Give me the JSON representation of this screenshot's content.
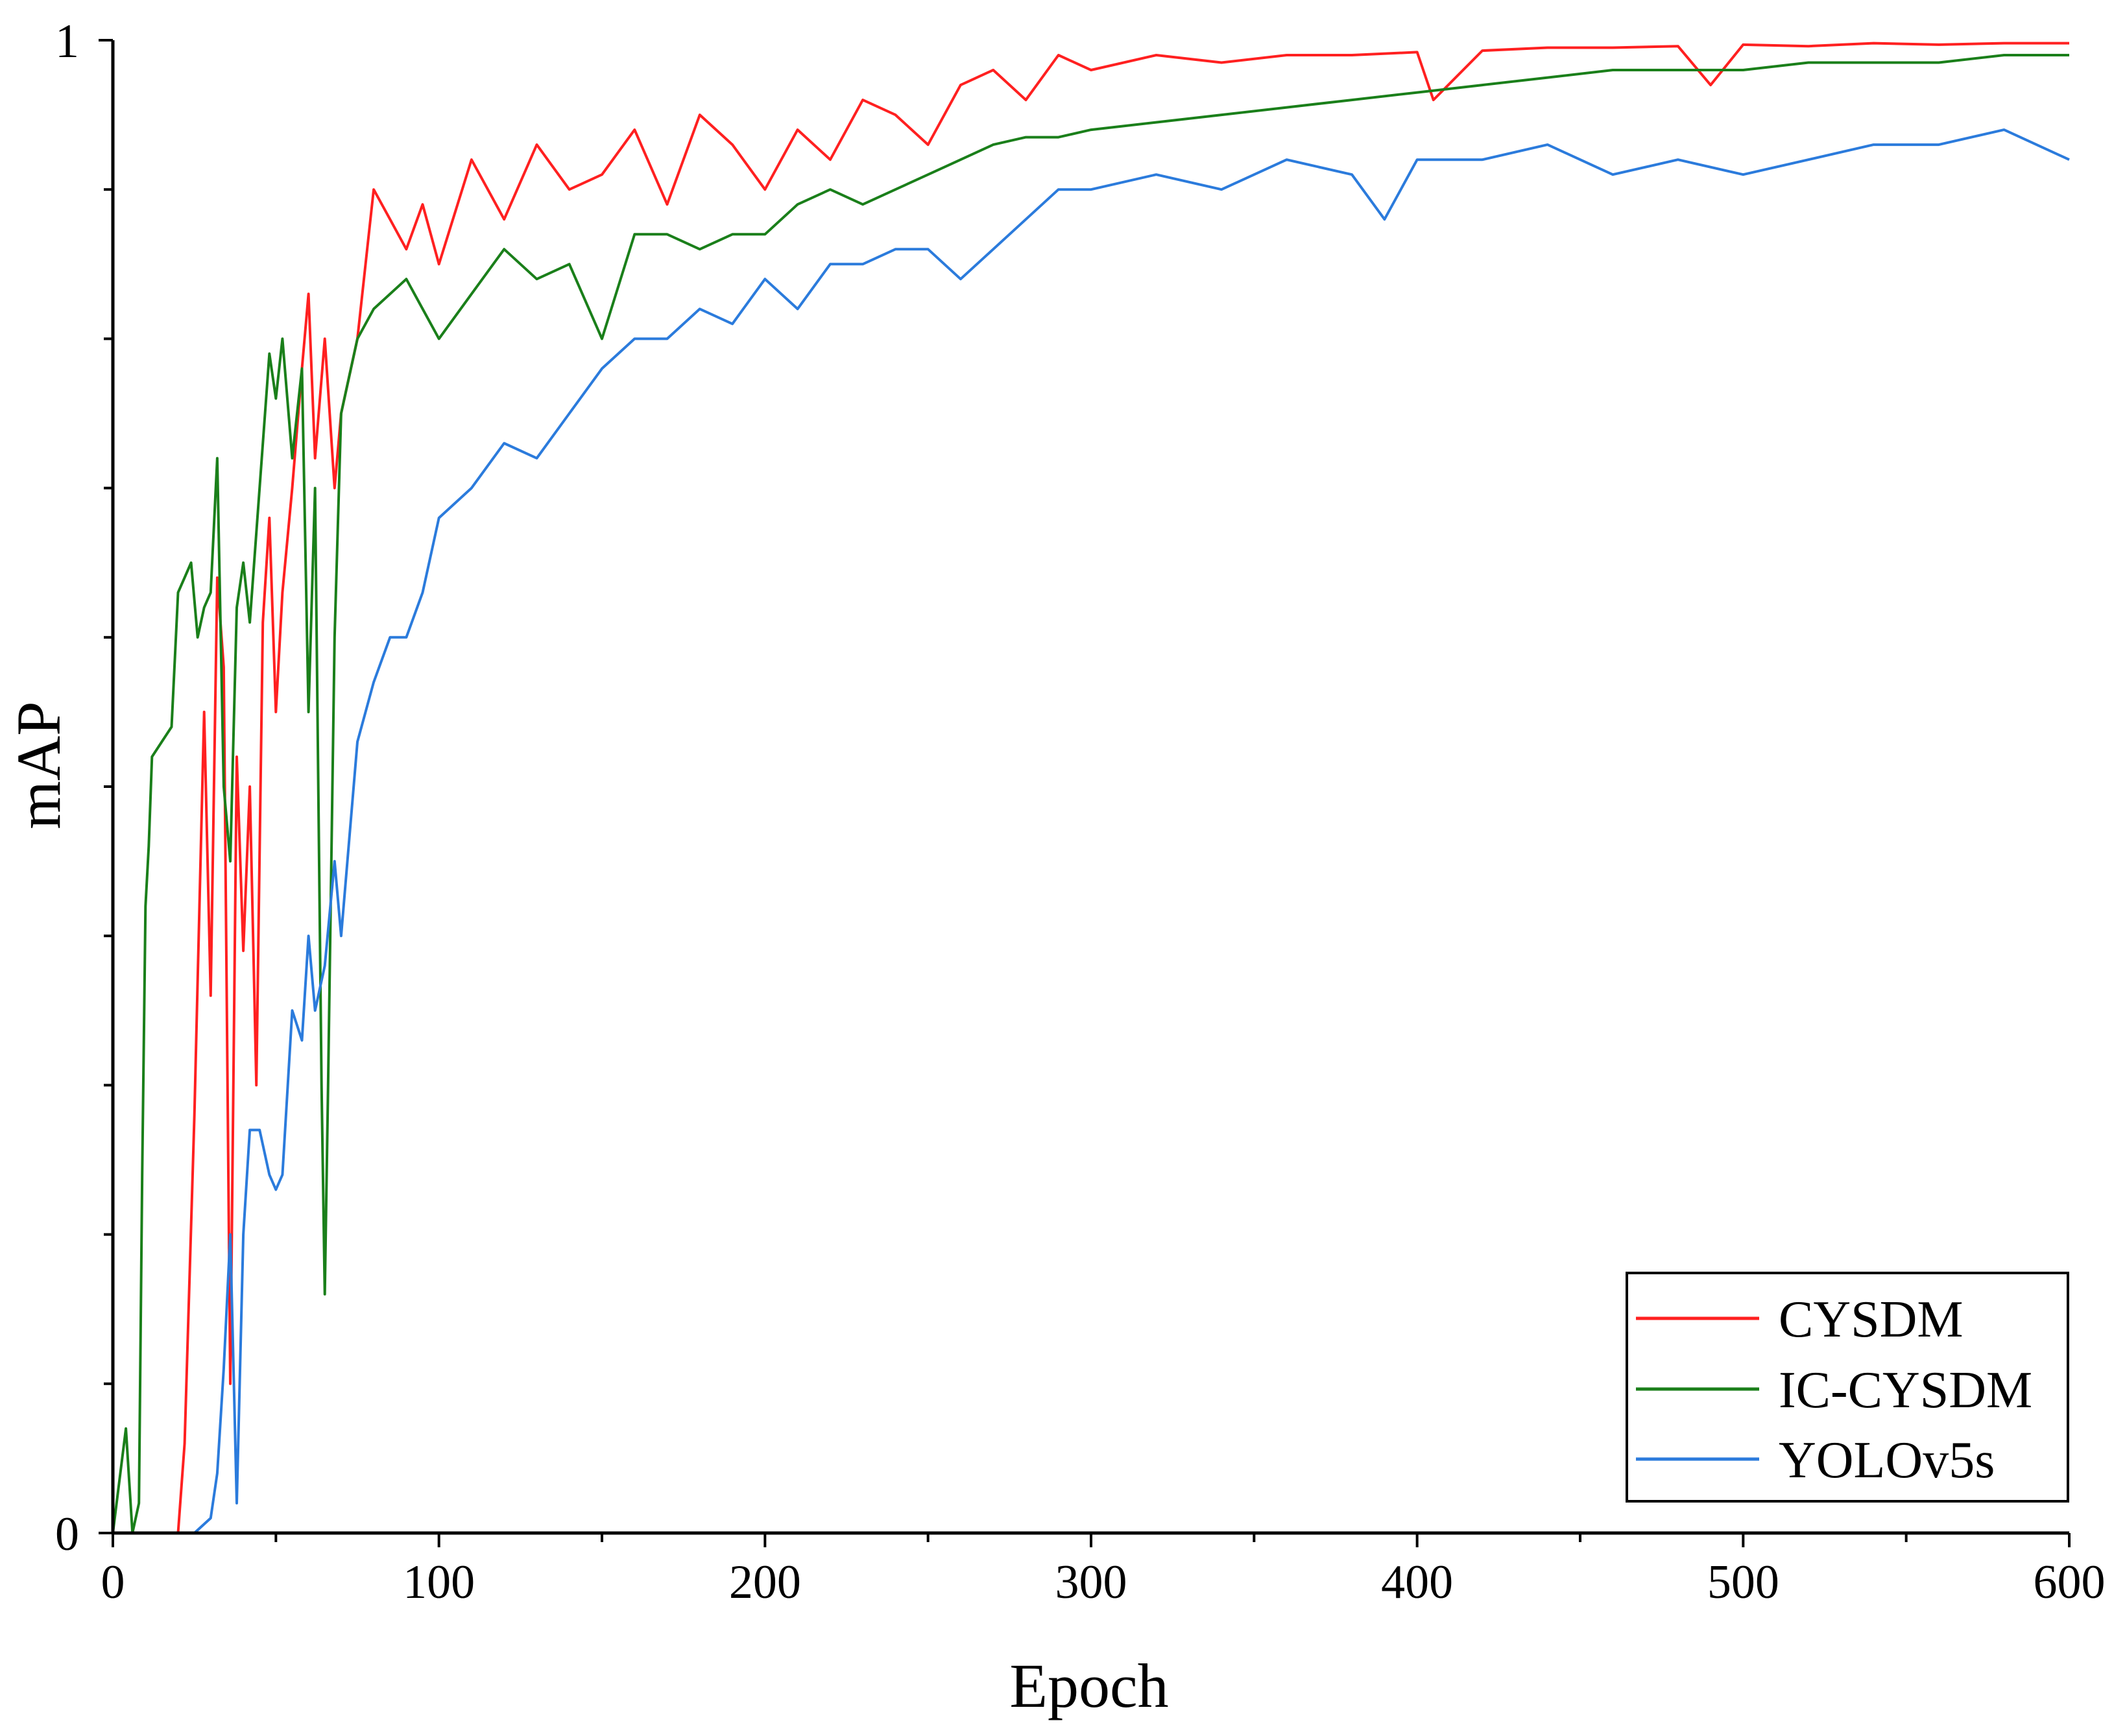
{
  "chart_data": {
    "type": "line",
    "title": "",
    "xlabel": "Epoch",
    "ylabel": "mAP",
    "xlim": [
      0,
      600
    ],
    "ylim": [
      0,
      1
    ],
    "x_major_ticks": [
      0,
      100,
      200,
      300,
      400,
      500,
      600
    ],
    "x_tick_labels": [
      "0",
      "100",
      "200",
      "300",
      "400",
      "500",
      "600"
    ],
    "x_minor_step": 50,
    "y_tick_labels": [
      "0",
      "1"
    ],
    "y_minor_step": 0.1,
    "legend_position": "bottom-right",
    "series": [
      {
        "name": "CYSDM",
        "color": "#ff2020",
        "x": [
          0,
          5,
          9,
          12,
          15,
          18,
          20,
          22,
          25,
          28,
          30,
          32,
          34,
          36,
          38,
          40,
          42,
          44,
          46,
          48,
          50,
          52,
          55,
          58,
          60,
          62,
          65,
          68,
          70,
          75,
          80,
          85,
          90,
          95,
          100,
          110,
          120,
          130,
          140,
          150,
          160,
          170,
          180,
          190,
          200,
          210,
          220,
          230,
          240,
          250,
          260,
          270,
          280,
          290,
          300,
          320,
          340,
          360,
          380,
          400,
          405,
          420,
          440,
          460,
          480,
          490,
          500,
          520,
          540,
          560,
          580,
          600
        ],
        "values": [
          0,
          0,
          0,
          0,
          0,
          0,
          0,
          0.06,
          0.28,
          0.55,
          0.36,
          0.64,
          0.58,
          0.1,
          0.52,
          0.39,
          0.5,
          0.3,
          0.61,
          0.68,
          0.55,
          0.63,
          0.7,
          0.78,
          0.83,
          0.72,
          0.8,
          0.7,
          0.75,
          0.8,
          0.9,
          0.88,
          0.86,
          0.89,
          0.85,
          0.92,
          0.88,
          0.93,
          0.9,
          0.91,
          0.94,
          0.89,
          0.95,
          0.93,
          0.9,
          0.94,
          0.92,
          0.96,
          0.95,
          0.93,
          0.97,
          0.98,
          0.96,
          0.99,
          0.98,
          0.99,
          0.985,
          0.99,
          0.99,
          0.992,
          0.96,
          0.993,
          0.995,
          0.995,
          0.996,
          0.97,
          0.997,
          0.996,
          0.998,
          0.997,
          0.998,
          0.998
        ]
      },
      {
        "name": "IC-CYSDM",
        "color": "#1a7f1a",
        "x": [
          0,
          4,
          6,
          8,
          9,
          10,
          11,
          12,
          15,
          18,
          20,
          22,
          24,
          26,
          28,
          30,
          32,
          34,
          36,
          38,
          40,
          42,
          45,
          48,
          50,
          52,
          55,
          58,
          60,
          62,
          64,
          65,
          66,
          68,
          70,
          75,
          80,
          90,
          100,
          110,
          120,
          130,
          140,
          150,
          160,
          170,
          180,
          190,
          200,
          210,
          220,
          230,
          240,
          250,
          260,
          270,
          280,
          290,
          300,
          320,
          340,
          360,
          380,
          400,
          420,
          440,
          460,
          480,
          500,
          520,
          540,
          560,
          580,
          600
        ],
        "values": [
          0,
          0.07,
          0,
          0.02,
          0.24,
          0.42,
          0.46,
          0.52,
          0.53,
          0.54,
          0.63,
          0.64,
          0.65,
          0.6,
          0.62,
          0.63,
          0.72,
          0.5,
          0.45,
          0.62,
          0.65,
          0.61,
          0.7,
          0.79,
          0.76,
          0.8,
          0.72,
          0.78,
          0.55,
          0.7,
          0.3,
          0.16,
          0.3,
          0.6,
          0.75,
          0.8,
          0.82,
          0.84,
          0.8,
          0.83,
          0.86,
          0.84,
          0.85,
          0.8,
          0.87,
          0.87,
          0.86,
          0.87,
          0.87,
          0.89,
          0.9,
          0.89,
          0.9,
          0.91,
          0.92,
          0.93,
          0.935,
          0.935,
          0.94,
          0.945,
          0.95,
          0.955,
          0.96,
          0.965,
          0.97,
          0.975,
          0.98,
          0.98,
          0.98,
          0.985,
          0.985,
          0.985,
          0.99,
          0.99
        ]
      },
      {
        "name": "YOLOv5s",
        "color": "#2b7bdc",
        "x": [
          0,
          10,
          20,
          25,
          30,
          32,
          34,
          36,
          38,
          40,
          42,
          45,
          48,
          50,
          52,
          55,
          58,
          60,
          62,
          65,
          68,
          70,
          75,
          80,
          85,
          90,
          95,
          100,
          110,
          120,
          130,
          140,
          150,
          160,
          170,
          180,
          190,
          200,
          210,
          220,
          230,
          240,
          250,
          260,
          270,
          280,
          290,
          300,
          320,
          340,
          360,
          380,
          390,
          400,
          420,
          440,
          460,
          480,
          500,
          520,
          540,
          560,
          580,
          600
        ],
        "values": [
          0,
          0,
          0,
          0,
          0.01,
          0.04,
          0.11,
          0.2,
          0.02,
          0.2,
          0.27,
          0.27,
          0.24,
          0.23,
          0.24,
          0.35,
          0.33,
          0.4,
          0.35,
          0.38,
          0.45,
          0.4,
          0.53,
          0.57,
          0.6,
          0.6,
          0.63,
          0.68,
          0.7,
          0.73,
          0.72,
          0.75,
          0.78,
          0.8,
          0.8,
          0.82,
          0.81,
          0.84,
          0.82,
          0.85,
          0.85,
          0.86,
          0.86,
          0.84,
          0.86,
          0.88,
          0.9,
          0.9,
          0.91,
          0.9,
          0.92,
          0.91,
          0.88,
          0.92,
          0.92,
          0.93,
          0.91,
          0.92,
          0.91,
          0.92,
          0.93,
          0.93,
          0.94,
          0.92
        ]
      }
    ]
  }
}
